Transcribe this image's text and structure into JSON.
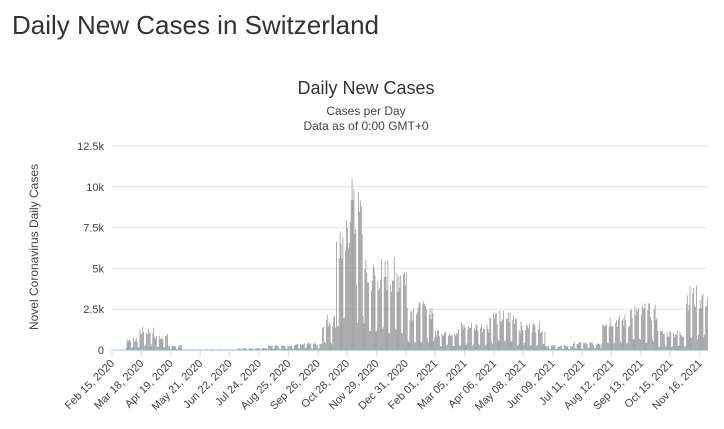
{
  "page": {
    "title": "Daily New Cases in Switzerland"
  },
  "chart_data": {
    "type": "bar",
    "title": "Daily New Cases",
    "subtitles": [
      "Cases per Day",
      "Data as of 0:00 GMT+0"
    ],
    "ylabel": "Novel Coronavirus Daily Cases",
    "xlabel": "",
    "ylim": [
      0,
      12500
    ],
    "yticks": [
      0,
      2500,
      5000,
      7500,
      10000,
      12500
    ],
    "ytick_labels": [
      "0",
      "2.5k",
      "5k",
      "7.5k",
      "10k",
      "12.5k"
    ],
    "x_start": "2020-02-15",
    "x_end": "2021-11-24",
    "xtick_labels": [
      "Feb 15, 2020",
      "Mar 18, 2020",
      "Apr 19, 2020",
      "May 21, 2020",
      "Jun 22, 2020",
      "Jul 24, 2020",
      "Aug 25, 2020",
      "Sep 26, 2020",
      "Oct 28, 2020",
      "Nov 29, 2020",
      "Dec 31, 2020",
      "Feb 01, 2021",
      "Mar 05, 2021",
      "Apr 06, 2021",
      "May 08, 2021",
      "Jun 09, 2021",
      "Jul 11, 2021",
      "Aug 12, 2021",
      "Sep 13, 2021",
      "Oct 15, 2021",
      "Nov 16, 2021"
    ],
    "grid": true,
    "bar_color": "#999999",
    "values_approx_by_period": [
      {
        "from": "2020-02-15",
        "to": "2020-02-29",
        "approx_cases": 20
      },
      {
        "from": "2020-03-01",
        "to": "2020-03-15",
        "approx_cases": 600
      },
      {
        "from": "2020-03-16",
        "to": "2020-03-31",
        "approx_cases": 1150
      },
      {
        "from": "2020-04-01",
        "to": "2020-04-15",
        "approx_cases": 800
      },
      {
        "from": "2020-04-16",
        "to": "2020-04-30",
        "approx_cases": 250
      },
      {
        "from": "2020-05-01",
        "to": "2020-05-31",
        "approx_cases": 30
      },
      {
        "from": "2020-06-01",
        "to": "2020-06-30",
        "approx_cases": 30
      },
      {
        "from": "2020-07-01",
        "to": "2020-07-31",
        "approx_cases": 100
      },
      {
        "from": "2020-08-01",
        "to": "2020-08-31",
        "approx_cases": 250
      },
      {
        "from": "2020-09-01",
        "to": "2020-09-30",
        "approx_cases": 380
      },
      {
        "from": "2020-10-01",
        "to": "2020-10-15",
        "approx_cases": 1800
      },
      {
        "from": "2020-10-16",
        "to": "2020-10-31",
        "approx_cases": 6500
      },
      {
        "from": "2020-11-01",
        "to": "2020-11-15",
        "approx_cases": 8000
      },
      {
        "from": "2020-11-16",
        "to": "2020-11-30",
        "approx_cases": 4500
      },
      {
        "from": "2020-12-01",
        "to": "2020-12-31",
        "approx_cases": 4600
      },
      {
        "from": "2021-01-01",
        "to": "2021-01-31",
        "approx_cases": 2400
      },
      {
        "from": "2021-02-01",
        "to": "2021-02-28",
        "approx_cases": 1100
      },
      {
        "from": "2021-03-01",
        "to": "2021-03-31",
        "approx_cases": 1400
      },
      {
        "from": "2021-04-01",
        "to": "2021-04-30",
        "approx_cases": 2000
      },
      {
        "from": "2021-05-01",
        "to": "2021-05-31",
        "approx_cases": 1400
      },
      {
        "from": "2021-06-01",
        "to": "2021-06-30",
        "approx_cases": 250
      },
      {
        "from": "2021-07-01",
        "to": "2021-07-31",
        "approx_cases": 400
      },
      {
        "from": "2021-08-01",
        "to": "2021-08-31",
        "approx_cases": 1800
      },
      {
        "from": "2021-09-01",
        "to": "2021-09-30",
        "approx_cases": 2300
      },
      {
        "from": "2021-10-01",
        "to": "2021-10-31",
        "approx_cases": 1000
      },
      {
        "from": "2021-11-01",
        "to": "2021-11-24",
        "approx_cases": 3200
      }
    ],
    "peak": {
      "date": "2020-11-02",
      "approx_cases": 10500
    }
  }
}
